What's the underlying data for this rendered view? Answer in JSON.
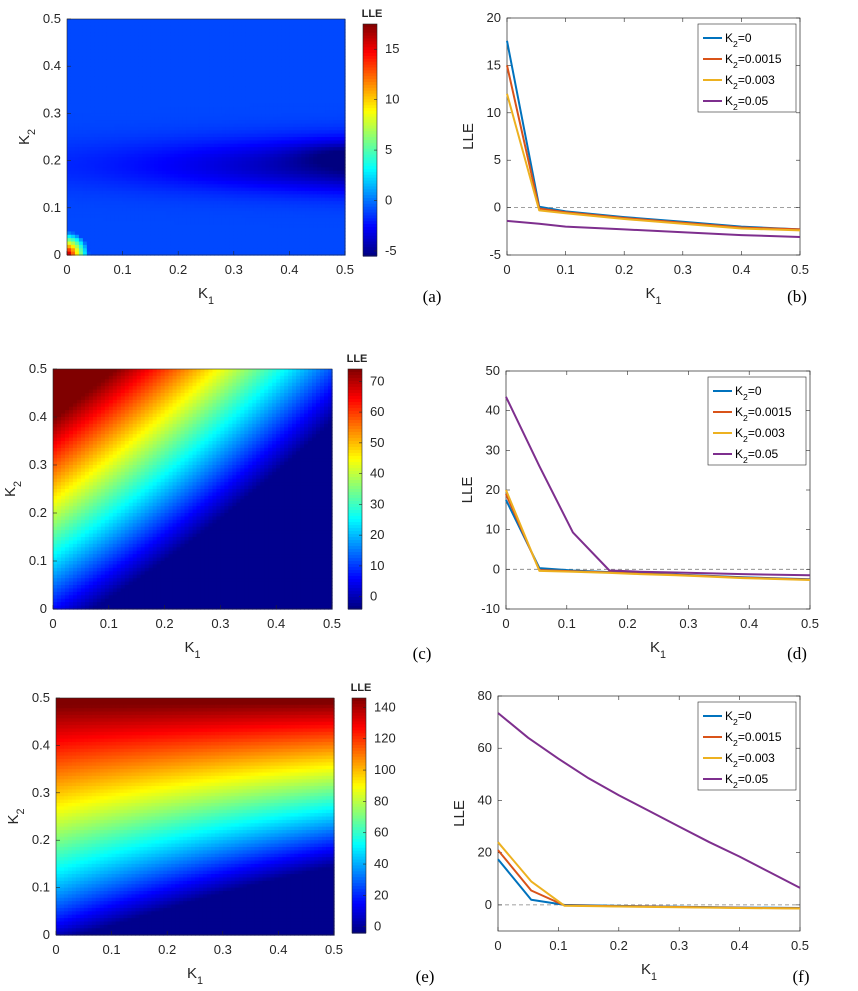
{
  "figure": {
    "colormap_name": "jet",
    "zero_line_color": "#808080",
    "series_colors": [
      "#0072BD",
      "#D95319",
      "#EDB120",
      "#7E2F8E"
    ]
  },
  "chart_data": [
    {
      "panel": "(a)",
      "type": "heatmap",
      "xlabel": "K",
      "xlabel_sub": "1",
      "ylabel": "K",
      "ylabel_sub": "2",
      "x_ticks": [
        "0",
        "0.1",
        "0.2",
        "0.3",
        "0.4",
        "0.5"
      ],
      "y_ticks": [
        "0",
        "0.1",
        "0.2",
        "0.3",
        "0.4",
        "0.5"
      ],
      "xlim": [
        0,
        0.5
      ],
      "ylim": [
        0,
        0.5
      ],
      "colorbar_title": "LLE",
      "colorbar_ticks": [
        "-5",
        "0",
        "5",
        "10",
        "15"
      ],
      "clim": [
        -5.5,
        17.5
      ],
      "description_values": {
        "corner_max": 17.5,
        "background": -1,
        "dark_band_min": -5.5
      }
    },
    {
      "panel": "(b)",
      "type": "line",
      "xlabel": "K",
      "xlabel_sub": "1",
      "ylabel": "LLE",
      "x_ticks": [
        "0",
        "0.1",
        "0.2",
        "0.3",
        "0.4",
        "0.5"
      ],
      "y_ticks": [
        "-5",
        "0",
        "5",
        "10",
        "15",
        "20"
      ],
      "xlim": [
        0,
        0.5
      ],
      "ylim": [
        -5,
        20
      ],
      "legend_position": "top-right",
      "series": [
        {
          "name": "K",
          "name_sub": "2",
          "name_rest": "=0",
          "x": [
            0,
            0.055,
            0.1,
            0.2,
            0.3,
            0.4,
            0.5
          ],
          "values": [
            17.6,
            0.1,
            -0.4,
            -1.0,
            -1.5,
            -2.0,
            -2.3
          ]
        },
        {
          "name": "K",
          "name_sub": "2",
          "name_rest": "=0.0015",
          "x": [
            0,
            0.055,
            0.1,
            0.2,
            0.3,
            0.4,
            0.5
          ],
          "values": [
            15.0,
            -0.1,
            -0.5,
            -1.1,
            -1.6,
            -2.1,
            -2.3
          ]
        },
        {
          "name": "K",
          "name_sub": "2",
          "name_rest": "=0.003",
          "x": [
            0,
            0.055,
            0.1,
            0.2,
            0.3,
            0.4,
            0.5
          ],
          "values": [
            12.0,
            -0.3,
            -0.6,
            -1.2,
            -1.7,
            -2.2,
            -2.4
          ]
        },
        {
          "name": "K",
          "name_sub": "2",
          "name_rest": "=0.05",
          "x": [
            0,
            0.055,
            0.1,
            0.2,
            0.3,
            0.4,
            0.5
          ],
          "values": [
            -1.4,
            -1.7,
            -2.0,
            -2.3,
            -2.6,
            -2.9,
            -3.1
          ]
        }
      ]
    },
    {
      "panel": "(c)",
      "type": "heatmap",
      "xlabel": "K",
      "xlabel_sub": "1",
      "ylabel": "K",
      "ylabel_sub": "2",
      "x_ticks": [
        "0",
        "0.1",
        "0.2",
        "0.3",
        "0.4",
        "0.5"
      ],
      "y_ticks": [
        "0",
        "0.1",
        "0.2",
        "0.3",
        "0.4",
        "0.5"
      ],
      "xlim": [
        0,
        0.5
      ],
      "ylim": [
        0,
        0.5
      ],
      "colorbar_title": "LLE",
      "colorbar_ticks": [
        "0",
        "10",
        "20",
        "30",
        "40",
        "50",
        "60",
        "70"
      ],
      "clim": [
        -4,
        74
      ],
      "description_values": {
        "corner_max": 74,
        "min": -3
      }
    },
    {
      "panel": "(d)",
      "type": "line",
      "xlabel": "K",
      "xlabel_sub": "1",
      "ylabel": "LLE",
      "x_ticks": [
        "0",
        "0.1",
        "0.2",
        "0.3",
        "0.4",
        "0.5"
      ],
      "y_ticks": [
        "-10",
        "0",
        "10",
        "20",
        "30",
        "40",
        "50"
      ],
      "xlim": [
        0,
        0.5
      ],
      "ylim": [
        -10,
        50
      ],
      "legend_position": "top-right",
      "series": [
        {
          "name": "K",
          "name_sub": "2",
          "name_rest": "=0",
          "x": [
            0,
            0.055,
            0.11,
            0.17,
            0.22,
            0.28,
            0.33,
            0.39,
            0.5
          ],
          "values": [
            17.5,
            0.3,
            -0.3,
            -0.7,
            -1.0,
            -1.3,
            -1.6,
            -2.0,
            -2.5
          ]
        },
        {
          "name": "K",
          "name_sub": "2",
          "name_rest": "=0.0015",
          "x": [
            0,
            0.055,
            0.11,
            0.17,
            0.22,
            0.28,
            0.33,
            0.39,
            0.5
          ],
          "values": [
            19.0,
            -0.2,
            -0.5,
            -0.8,
            -1.1,
            -1.4,
            -1.7,
            -2.1,
            -2.6
          ]
        },
        {
          "name": "K",
          "name_sub": "2",
          "name_rest": "=0.003",
          "x": [
            0,
            0.055,
            0.11,
            0.17,
            0.22,
            0.28,
            0.33,
            0.39,
            0.5
          ],
          "values": [
            20.0,
            -0.4,
            -0.6,
            -0.9,
            -1.2,
            -1.5,
            -1.8,
            -2.2,
            -2.7
          ]
        },
        {
          "name": "K",
          "name_sub": "2",
          "name_rest": "=0.05",
          "x": [
            0,
            0.055,
            0.11,
            0.17,
            0.22,
            0.28,
            0.33,
            0.39,
            0.5
          ],
          "values": [
            43.5,
            26.0,
            9.3,
            -0.3,
            -0.6,
            -0.8,
            -1.0,
            -1.2,
            -1.5
          ]
        }
      ]
    },
    {
      "panel": "(e)",
      "type": "heatmap",
      "xlabel": "K",
      "xlabel_sub": "1",
      "ylabel": "K",
      "ylabel_sub": "2",
      "x_ticks": [
        "0",
        "0.1",
        "0.2",
        "0.3",
        "0.4",
        "0.5"
      ],
      "y_ticks": [
        "0",
        "0.1",
        "0.2",
        "0.3",
        "0.4",
        "0.5"
      ],
      "xlim": [
        0,
        0.5
      ],
      "ylim": [
        0,
        0.5
      ],
      "colorbar_title": "LLE",
      "colorbar_ticks": [
        "0",
        "20",
        "40",
        "60",
        "80",
        "100",
        "120",
        "140"
      ],
      "clim": [
        -4,
        146
      ],
      "description_values": {
        "corner_max": 146,
        "min": -2
      }
    },
    {
      "panel": "(f)",
      "type": "line",
      "xlabel": "K",
      "xlabel_sub": "1",
      "ylabel": "LLE",
      "x_ticks": [
        "0",
        "0.1",
        "0.2",
        "0.3",
        "0.4",
        "0.5"
      ],
      "y_ticks": [
        "0",
        "20",
        "40",
        "60",
        "80"
      ],
      "xlim": [
        0,
        0.5
      ],
      "ylim": [
        -10,
        80
      ],
      "legend_position": "top-right",
      "series": [
        {
          "name": "K",
          "name_sub": "2",
          "name_rest": "=0",
          "x": [
            0,
            0.055,
            0.11,
            0.2,
            0.3,
            0.4,
            0.5
          ],
          "values": [
            17.5,
            2.0,
            0.0,
            -0.4,
            -0.7,
            -1.0,
            -1.2
          ]
        },
        {
          "name": "K",
          "name_sub": "2",
          "name_rest": "=0.0015",
          "x": [
            0,
            0.055,
            0.11,
            0.2,
            0.3,
            0.4,
            0.5
          ],
          "values": [
            21.0,
            5.5,
            -0.2,
            -0.5,
            -0.8,
            -1.1,
            -1.3
          ]
        },
        {
          "name": "K",
          "name_sub": "2",
          "name_rest": "=0.003",
          "x": [
            0,
            0.055,
            0.11,
            0.2,
            0.3,
            0.4,
            0.5
          ],
          "values": [
            24.0,
            9.0,
            -0.3,
            -0.6,
            -0.9,
            -1.2,
            -1.4
          ]
        },
        {
          "name": "K",
          "name_sub": "2",
          "name_rest": "=0.05",
          "x": [
            0,
            0.05,
            0.1,
            0.15,
            0.2,
            0.25,
            0.3,
            0.35,
            0.4,
            0.45,
            0.5
          ],
          "values": [
            73.5,
            64.0,
            56.0,
            48.5,
            42.0,
            36.0,
            30.0,
            24.0,
            18.5,
            12.5,
            6.5
          ]
        }
      ]
    }
  ]
}
